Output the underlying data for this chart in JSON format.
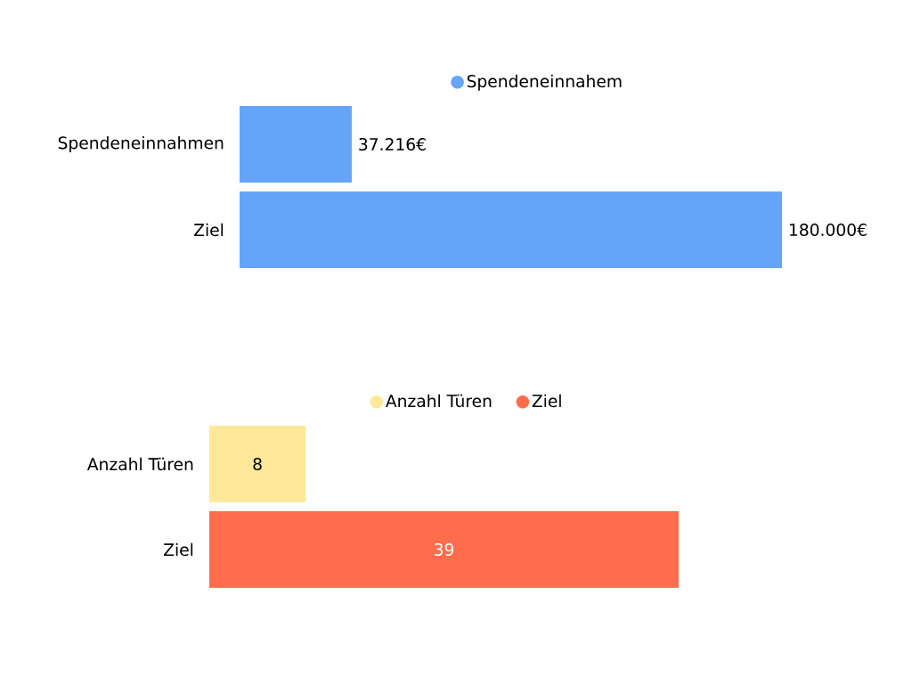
{
  "chart_data": [
    {
      "type": "bar",
      "orientation": "horizontal",
      "categories": [
        "Spendeneinnahmen",
        "Ziel"
      ],
      "series": [
        {
          "name": "Spendeneinnahem",
          "color": "#64a5fa",
          "values": [
            37216,
            180000
          ],
          "value_labels": [
            "37.216€",
            "180.000€"
          ]
        }
      ],
      "legend": "top"
    },
    {
      "type": "bar",
      "orientation": "horizontal",
      "categories": [
        "Anzahl Türen",
        "Ziel"
      ],
      "series": [
        {
          "name": "Anzahl Türen",
          "color": "#ffe999",
          "values": [
            8,
            null
          ]
        },
        {
          "name": "Ziel",
          "color": "#ff6d4d",
          "values": [
            null,
            39
          ]
        }
      ],
      "data_labels": true,
      "legend": "top"
    }
  ]
}
